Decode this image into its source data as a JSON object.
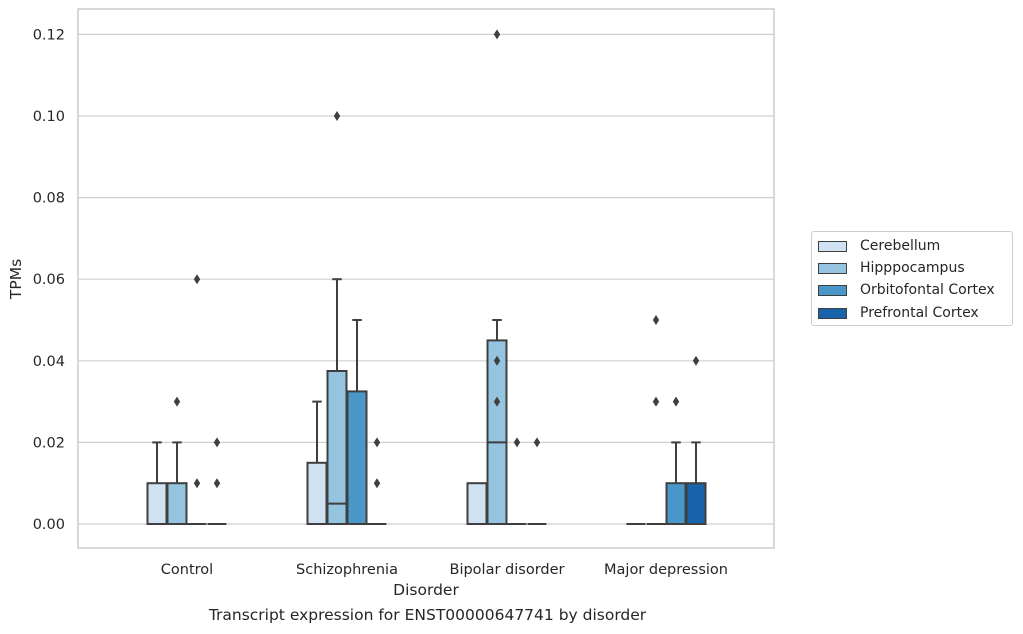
{
  "chart_data": {
    "type": "box",
    "xlabel": "Disorder",
    "ylabel": "TPMs",
    "caption": "Transcript expression for ENST00000647741 by disorder",
    "ylim": [
      -0.006,
      0.126
    ],
    "yticks": [
      0.0,
      0.02,
      0.04,
      0.06,
      0.08,
      0.1,
      0.12
    ],
    "ytick_labels": [
      "0.00",
      "0.02",
      "0.04",
      "0.06",
      "0.08",
      "0.10",
      "0.12"
    ],
    "grid": "horizontal",
    "legend_position": "right",
    "categories": [
      "Control",
      "Schizophrenia",
      "Bipolar disorder",
      "Major depression"
    ],
    "series": [
      {
        "name": "Cerebellum",
        "color": "#d0e1f2",
        "boxes": [
          {
            "min": 0,
            "q1": 0,
            "median": 0,
            "q3": 0.01,
            "max": 0.02,
            "outliers": []
          },
          {
            "min": 0,
            "q1": 0,
            "median": 0,
            "q3": 0.015,
            "max": 0.03,
            "outliers": []
          },
          {
            "min": 0,
            "q1": 0,
            "median": 0,
            "q3": 0.01,
            "max": 0.01,
            "outliers": []
          },
          {
            "min": 0,
            "q1": 0,
            "median": 0,
            "q3": 0,
            "max": 0,
            "outliers": []
          }
        ]
      },
      {
        "name": "Hipppocampus",
        "color": "#94c4df",
        "boxes": [
          {
            "min": 0,
            "q1": 0,
            "median": 0,
            "q3": 0.01,
            "max": 0.02,
            "outliers": [
              0.03
            ]
          },
          {
            "min": 0,
            "q1": 0,
            "median": 0.005,
            "q3": 0.0375,
            "max": 0.06,
            "outliers": [
              0.1
            ]
          },
          {
            "min": 0,
            "q1": 0,
            "median": 0.02,
            "q3": 0.045,
            "max": 0.05,
            "outliers": [
              0.03,
              0.04,
              0.12
            ]
          },
          {
            "min": 0,
            "q1": 0,
            "median": 0,
            "q3": 0,
            "max": 0,
            "outliers": [
              0.03,
              0.05
            ]
          }
        ]
      },
      {
        "name": "Orbitofontal Cortex",
        "color": "#4a98c9",
        "boxes": [
          {
            "min": 0,
            "q1": 0,
            "median": 0,
            "q3": 0,
            "max": 0,
            "outliers": [
              0.01,
              0.06
            ]
          },
          {
            "min": 0,
            "q1": 0,
            "median": 0,
            "q3": 0.0325,
            "max": 0.05,
            "outliers": []
          },
          {
            "min": 0,
            "q1": 0,
            "median": 0,
            "q3": 0,
            "max": 0,
            "outliers": [
              0.02
            ]
          },
          {
            "min": 0,
            "q1": 0,
            "median": 0,
            "q3": 0.01,
            "max": 0.02,
            "outliers": [
              0.03
            ]
          }
        ]
      },
      {
        "name": "Prefrontal Cortex",
        "color": "#1764ab",
        "boxes": [
          {
            "min": 0,
            "q1": 0,
            "median": 0,
            "q3": 0,
            "max": 0,
            "outliers": [
              0.01,
              0.02
            ]
          },
          {
            "min": 0,
            "q1": 0,
            "median": 0,
            "q3": 0,
            "max": 0,
            "outliers": [
              0.01,
              0.02
            ]
          },
          {
            "min": 0,
            "q1": 0,
            "median": 0,
            "q3": 0,
            "max": 0,
            "outliers": [
              0.02
            ]
          },
          {
            "min": 0,
            "q1": 0,
            "median": 0,
            "q3": 0.01,
            "max": 0.02,
            "outliers": [
              0.04
            ]
          }
        ]
      }
    ]
  },
  "colors": {
    "frame": "#cccccc",
    "grid": "#d0d0d0",
    "box_edge": "#3f3f3f",
    "text": "#262626"
  }
}
